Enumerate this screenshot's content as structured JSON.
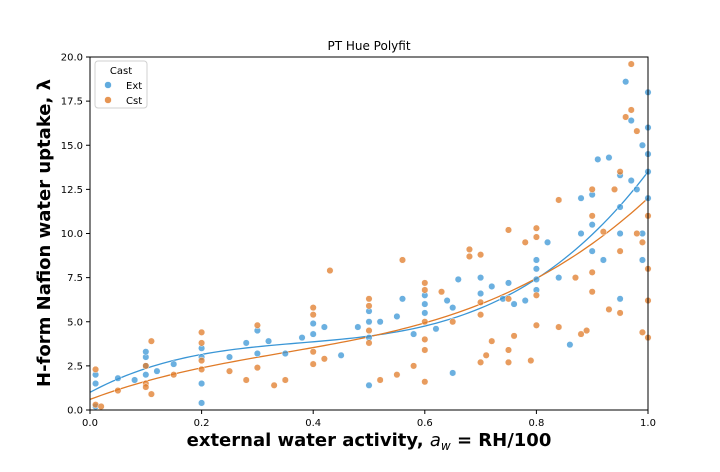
{
  "chart_data": {
    "type": "scatter",
    "title": "PT Hue Polyfit",
    "xlabel_main": "external water activity, ",
    "xlabel_sym": "a",
    "xlabel_sub": "w",
    "xlabel_rest": " = RH/100",
    "ylabel": "H-form Nafion water uptake, λ",
    "xlim": [
      0.0,
      1.0
    ],
    "ylim": [
      0.0,
      20.0
    ],
    "xticks": [
      0.0,
      0.2,
      0.4,
      0.6,
      0.8,
      1.0
    ],
    "xtick_labels": [
      "0.0",
      "0.2",
      "0.4",
      "0.6",
      "0.8",
      "1.0"
    ],
    "yticks": [
      0.0,
      2.5,
      5.0,
      7.5,
      10.0,
      12.5,
      15.0,
      17.5,
      20.0
    ],
    "ytick_labels": [
      "0.0",
      "2.5",
      "5.0",
      "7.5",
      "10.0",
      "12.5",
      "15.0",
      "17.5",
      "20.0"
    ],
    "grid": false,
    "legend": {
      "title": "Cast",
      "placement": "top-left",
      "entries": [
        {
          "label": "Ext",
          "color": "#3a96d6"
        },
        {
          "label": "Cst",
          "color": "#e07b28"
        }
      ]
    },
    "series": [
      {
        "name": "Ext",
        "color": "#3a96d6",
        "points": [
          [
            0.01,
            1.5
          ],
          [
            0.01,
            2.0
          ],
          [
            0.01,
            0.2
          ],
          [
            0.05,
            1.8
          ],
          [
            0.08,
            1.7
          ],
          [
            0.1,
            2.5
          ],
          [
            0.1,
            3.0
          ],
          [
            0.1,
            2.0
          ],
          [
            0.1,
            3.3
          ],
          [
            0.12,
            2.2
          ],
          [
            0.15,
            2.6
          ],
          [
            0.2,
            3.0
          ],
          [
            0.2,
            3.5
          ],
          [
            0.2,
            0.4
          ],
          [
            0.2,
            1.5
          ],
          [
            0.25,
            3.0
          ],
          [
            0.28,
            3.8
          ],
          [
            0.3,
            3.2
          ],
          [
            0.3,
            4.5
          ],
          [
            0.32,
            3.9
          ],
          [
            0.35,
            3.2
          ],
          [
            0.38,
            4.1
          ],
          [
            0.4,
            4.3
          ],
          [
            0.4,
            4.9
          ],
          [
            0.42,
            4.7
          ],
          [
            0.45,
            3.1
          ],
          [
            0.48,
            4.7
          ],
          [
            0.5,
            1.4
          ],
          [
            0.5,
            4.1
          ],
          [
            0.5,
            5.0
          ],
          [
            0.5,
            5.6
          ],
          [
            0.52,
            5.0
          ],
          [
            0.55,
            5.3
          ],
          [
            0.56,
            6.3
          ],
          [
            0.58,
            4.3
          ],
          [
            0.6,
            5.5
          ],
          [
            0.6,
            6.0
          ],
          [
            0.6,
            6.5
          ],
          [
            0.62,
            4.6
          ],
          [
            0.64,
            6.2
          ],
          [
            0.65,
            2.1
          ],
          [
            0.65,
            5.8
          ],
          [
            0.66,
            7.4
          ],
          [
            0.7,
            6.6
          ],
          [
            0.7,
            7.5
          ],
          [
            0.72,
            7.0
          ],
          [
            0.74,
            6.3
          ],
          [
            0.75,
            7.2
          ],
          [
            0.76,
            6.0
          ],
          [
            0.78,
            6.2
          ],
          [
            0.8,
            7.4
          ],
          [
            0.8,
            8.0
          ],
          [
            0.8,
            8.5
          ],
          [
            0.8,
            6.8
          ],
          [
            0.82,
            9.5
          ],
          [
            0.84,
            7.5
          ],
          [
            0.86,
            3.7
          ],
          [
            0.88,
            12.0
          ],
          [
            0.88,
            10.0
          ],
          [
            0.9,
            9.0
          ],
          [
            0.9,
            10.5
          ],
          [
            0.9,
            12.2
          ],
          [
            0.91,
            14.2
          ],
          [
            0.92,
            8.5
          ],
          [
            0.93,
            14.3
          ],
          [
            0.95,
            10.0
          ],
          [
            0.95,
            11.5
          ],
          [
            0.95,
            13.3
          ],
          [
            0.95,
            6.3
          ],
          [
            0.96,
            18.6
          ],
          [
            0.97,
            16.4
          ],
          [
            0.97,
            13.0
          ],
          [
            0.98,
            12.5
          ],
          [
            0.99,
            10.0
          ],
          [
            0.99,
            15.0
          ],
          [
            0.99,
            8.5
          ],
          [
            1.0,
            18.0
          ],
          [
            1.0,
            16.0
          ],
          [
            1.0,
            13.5
          ],
          [
            1.0,
            12.0
          ],
          [
            1.0,
            14.5
          ]
        ]
      },
      {
        "name": "Cst",
        "color": "#e07b28",
        "points": [
          [
            0.01,
            0.3
          ],
          [
            0.01,
            2.3
          ],
          [
            0.02,
            0.2
          ],
          [
            0.05,
            1.1
          ],
          [
            0.1,
            1.5
          ],
          [
            0.1,
            1.3
          ],
          [
            0.1,
            2.5
          ],
          [
            0.11,
            0.9
          ],
          [
            0.11,
            3.9
          ],
          [
            0.15,
            2.0
          ],
          [
            0.2,
            2.8
          ],
          [
            0.2,
            3.8
          ],
          [
            0.2,
            4.4
          ],
          [
            0.2,
            2.3
          ],
          [
            0.25,
            2.2
          ],
          [
            0.28,
            1.7
          ],
          [
            0.3,
            2.4
          ],
          [
            0.3,
            4.8
          ],
          [
            0.33,
            1.4
          ],
          [
            0.35,
            1.7
          ],
          [
            0.4,
            2.6
          ],
          [
            0.4,
            3.3
          ],
          [
            0.4,
            5.4
          ],
          [
            0.4,
            5.8
          ],
          [
            0.42,
            2.9
          ],
          [
            0.43,
            7.9
          ],
          [
            0.5,
            3.8
          ],
          [
            0.5,
            4.5
          ],
          [
            0.5,
            5.9
          ],
          [
            0.5,
            6.3
          ],
          [
            0.52,
            1.7
          ],
          [
            0.55,
            2.0
          ],
          [
            0.56,
            8.5
          ],
          [
            0.58,
            2.5
          ],
          [
            0.6,
            1.6
          ],
          [
            0.6,
            3.4
          ],
          [
            0.6,
            4.0
          ],
          [
            0.6,
            5.0
          ],
          [
            0.6,
            6.8
          ],
          [
            0.6,
            7.2
          ],
          [
            0.63,
            6.7
          ],
          [
            0.65,
            5.0
          ],
          [
            0.68,
            9.1
          ],
          [
            0.68,
            8.7
          ],
          [
            0.7,
            2.7
          ],
          [
            0.7,
            5.4
          ],
          [
            0.7,
            6.1
          ],
          [
            0.7,
            8.8
          ],
          [
            0.71,
            3.1
          ],
          [
            0.72,
            3.9
          ],
          [
            0.75,
            2.7
          ],
          [
            0.75,
            3.4
          ],
          [
            0.75,
            6.3
          ],
          [
            0.75,
            10.2
          ],
          [
            0.76,
            4.2
          ],
          [
            0.78,
            9.5
          ],
          [
            0.79,
            2.8
          ],
          [
            0.8,
            6.5
          ],
          [
            0.8,
            4.8
          ],
          [
            0.8,
            9.8
          ],
          [
            0.8,
            10.3
          ],
          [
            0.84,
            11.9
          ],
          [
            0.84,
            4.7
          ],
          [
            0.87,
            7.5
          ],
          [
            0.88,
            4.3
          ],
          [
            0.89,
            4.5
          ],
          [
            0.9,
            6.7
          ],
          [
            0.9,
            7.8
          ],
          [
            0.9,
            11.0
          ],
          [
            0.9,
            12.5
          ],
          [
            0.92,
            10.1
          ],
          [
            0.93,
            5.7
          ],
          [
            0.94,
            12.5
          ],
          [
            0.95,
            5.5
          ],
          [
            0.95,
            9.0
          ],
          [
            0.95,
            13.5
          ],
          [
            0.96,
            16.6
          ],
          [
            0.97,
            19.6
          ],
          [
            0.97,
            17.0
          ],
          [
            0.98,
            10.0
          ],
          [
            0.98,
            15.8
          ],
          [
            0.99,
            4.4
          ],
          [
            0.99,
            9.5
          ],
          [
            1.0,
            4.1
          ],
          [
            1.0,
            6.2
          ],
          [
            1.0,
            8.0
          ],
          [
            1.0,
            11.0
          ]
        ]
      }
    ],
    "fit_lines": [
      {
        "series": "Ext",
        "color": "#3a96d6",
        "coeffs": [
          1.0,
          17.0,
          -38.0,
          33.5
        ]
      },
      {
        "series": "Cst",
        "color": "#e07b28",
        "coeffs": [
          0.6,
          12.0,
          -19.0,
          18.4
        ]
      }
    ]
  }
}
